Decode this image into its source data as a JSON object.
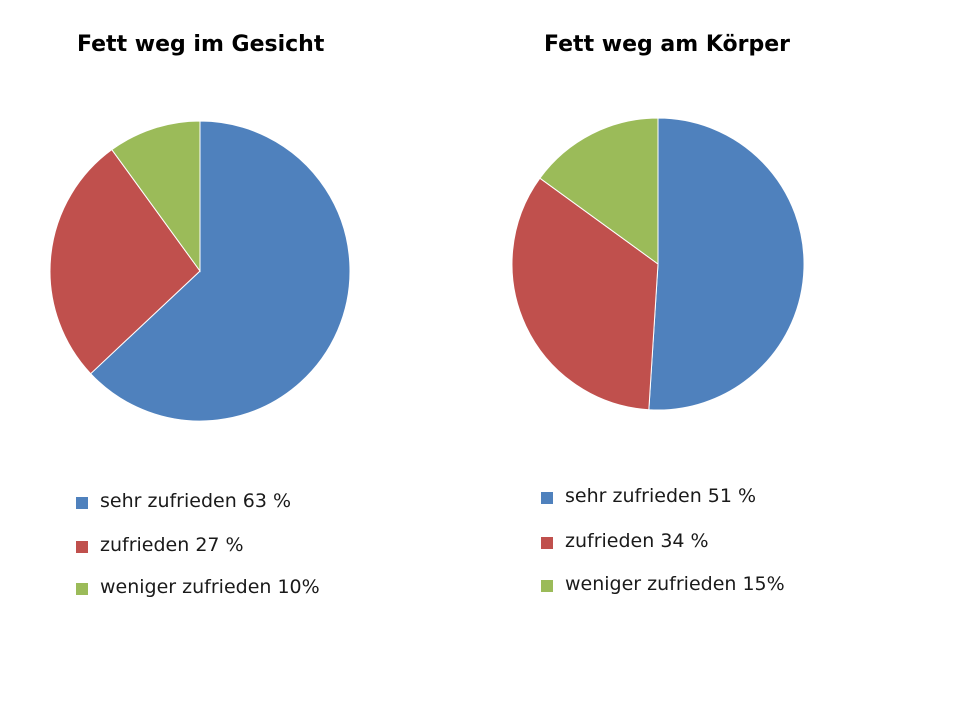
{
  "chart_data": [
    {
      "type": "pie",
      "title": "Fett weg im Gesicht",
      "categories": [
        "sehr zufrieden",
        "zufrieden",
        "weniger zufrieden"
      ],
      "values": [
        63,
        27,
        10
      ],
      "legend_labels": [
        "sehr zufrieden 63 %",
        "zufrieden 27 %",
        "weniger zufrieden 10%"
      ],
      "colors": [
        "#4F81BD",
        "#C0504D",
        "#9BBB59"
      ],
      "legend_position": "bottom"
    },
    {
      "type": "pie",
      "title": "Fett weg am Körper",
      "categories": [
        "sehr zufrieden",
        "zufrieden",
        "weniger zufrieden"
      ],
      "values": [
        51,
        34,
        15
      ],
      "legend_labels": [
        "sehr zufrieden 51 %",
        "zufrieden 34 %",
        "weniger zufrieden 15%"
      ],
      "colors": [
        "#4F81BD",
        "#C0504D",
        "#9BBB59"
      ],
      "legend_position": "bottom"
    }
  ]
}
